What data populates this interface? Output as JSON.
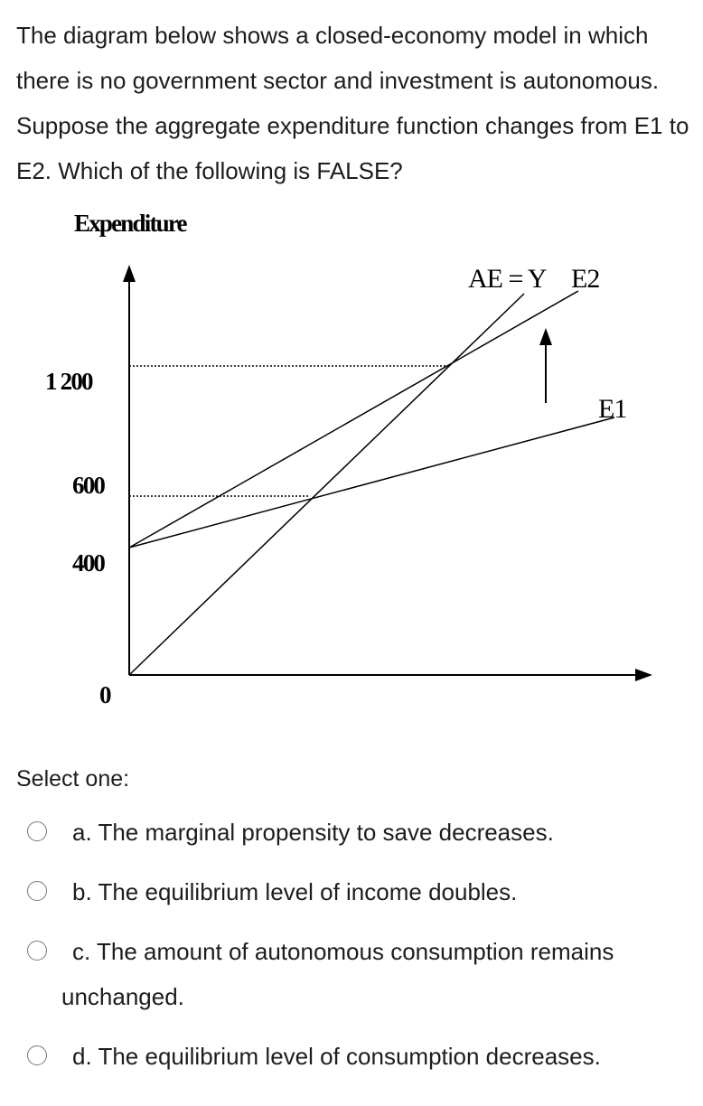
{
  "question": {
    "text": "The diagram below shows a closed-economy model in which there is no government sector and investment is autonomous. Suppose the aggregate expenditure function changes from E1 to E2. Which of the following is FALSE?"
  },
  "diagram": {
    "y_axis_label": "Expenditure",
    "origin_label": "0",
    "tick_labels": {
      "t1200": "1 200",
      "t600": "600",
      "t400": "400"
    },
    "line_labels": {
      "ae_y": "AE = Y",
      "e2": "E2",
      "e1": "E1"
    },
    "line_color": "#000000",
    "dotted_line_color": "#000000"
  },
  "chart_data": {
    "type": "line",
    "title": "",
    "ylabel": "Expenditure",
    "xlabel": "",
    "y_ticks": [
      0,
      400,
      600,
      1200
    ],
    "series": [
      {
        "name": "AE = Y",
        "x": [
          0,
          1200
        ],
        "y": [
          0,
          1200
        ]
      },
      {
        "name": "E2",
        "x": [
          0,
          1200
        ],
        "y": [
          400,
          1200
        ]
      },
      {
        "name": "E1",
        "x": [
          0,
          600
        ],
        "y": [
          400,
          600
        ]
      }
    ],
    "annotations": [
      "upward shift arrow from E1 to E2",
      "dotted guide at 1200",
      "dotted guide at 600"
    ]
  },
  "select_label": "Select one:",
  "options": [
    {
      "letter": "a.",
      "text": "The marginal propensity to save decreases."
    },
    {
      "letter": "b.",
      "text": "The equilibrium level of income doubles."
    },
    {
      "letter": "c.",
      "text": "The amount of autonomous consumption remains unchanged."
    },
    {
      "letter": "d.",
      "text": "The equilibrium level of consumption decreases."
    }
  ]
}
